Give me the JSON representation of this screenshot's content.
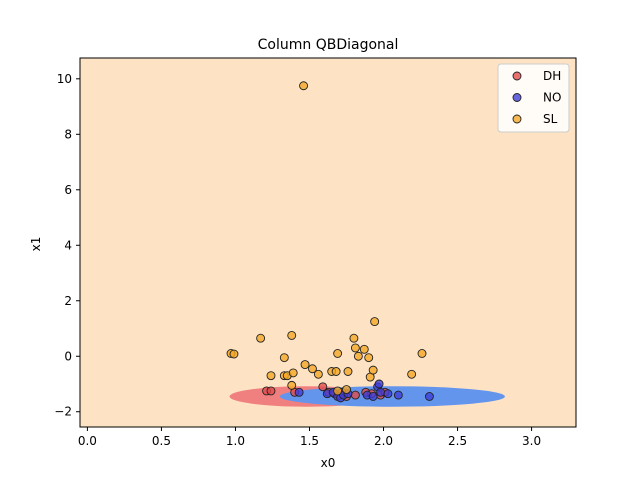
{
  "chart_data": {
    "type": "scatter",
    "title": "Column QBDiagonal",
    "xlabel": "x0",
    "ylabel": "x1",
    "xlim": [
      -0.05,
      3.3
    ],
    "ylim": [
      -2.55,
      10.75
    ],
    "xticks": [
      0.0,
      0.5,
      1.0,
      1.5,
      2.0,
      2.5,
      3.0
    ],
    "xtick_labels": [
      "0.0",
      "0.5",
      "1.0",
      "1.5",
      "2.0",
      "2.5",
      "3.0"
    ],
    "yticks": [
      -2,
      0,
      2,
      4,
      6,
      8,
      10
    ],
    "ytick_labels": [
      "−2",
      "0",
      "2",
      "4",
      "6",
      "8",
      "10"
    ],
    "grid": false,
    "legend_position": "top-right",
    "background_region_color": "#fde3c4",
    "decision_regions": [
      {
        "class": "DH",
        "color": "#f08080",
        "cx": 1.48,
        "cy": -1.45,
        "rx": 0.52,
        "ry": 0.37
      },
      {
        "class": "NO",
        "color": "#6495ed",
        "cx": 2.06,
        "cy": -1.45,
        "rx": 0.76,
        "ry": 0.37
      }
    ],
    "series": [
      {
        "name": "DH",
        "color": "#e24a4a",
        "points": [
          [
            1.21,
            -1.25
          ],
          [
            1.24,
            -1.25
          ],
          [
            1.4,
            -1.3
          ],
          [
            1.59,
            -1.1
          ],
          [
            1.63,
            -1.3
          ],
          [
            1.67,
            -1.35
          ],
          [
            1.7,
            -1.4
          ],
          [
            1.72,
            -1.3
          ],
          [
            1.75,
            -1.45
          ],
          [
            1.81,
            -1.4
          ],
          [
            1.88,
            -1.3
          ],
          [
            1.92,
            -1.35
          ],
          [
            1.98,
            -1.4
          ],
          [
            2.01,
            -1.3
          ]
        ]
      },
      {
        "name": "NO",
        "color": "#3c3cd8",
        "points": [
          [
            1.43,
            -1.3
          ],
          [
            1.62,
            -1.35
          ],
          [
            1.66,
            -1.3
          ],
          [
            1.69,
            -1.45
          ],
          [
            1.71,
            -1.5
          ],
          [
            1.73,
            -1.4
          ],
          [
            1.76,
            -1.35
          ],
          [
            1.89,
            -1.4
          ],
          [
            1.93,
            -1.45
          ],
          [
            1.96,
            -1.1
          ],
          [
            1.97,
            -1.0
          ],
          [
            1.98,
            -1.3
          ],
          [
            2.03,
            -1.35
          ],
          [
            2.1,
            -1.4
          ],
          [
            2.31,
            -1.45
          ]
        ]
      },
      {
        "name": "SL",
        "color": "#f5a623",
        "points": [
          [
            1.46,
            9.75
          ],
          [
            0.97,
            0.1
          ],
          [
            0.99,
            0.08
          ],
          [
            1.17,
            0.65
          ],
          [
            1.24,
            -0.7
          ],
          [
            1.33,
            -0.05
          ],
          [
            1.33,
            -0.7
          ],
          [
            1.35,
            -0.7
          ],
          [
            1.38,
            0.75
          ],
          [
            1.38,
            -1.05
          ],
          [
            1.39,
            -0.6
          ],
          [
            1.47,
            -0.3
          ],
          [
            1.52,
            -0.45
          ],
          [
            1.56,
            -0.65
          ],
          [
            1.65,
            -0.55
          ],
          [
            1.68,
            -0.55
          ],
          [
            1.69,
            0.1
          ],
          [
            1.69,
            -1.25
          ],
          [
            1.75,
            -1.2
          ],
          [
            1.76,
            -0.55
          ],
          [
            1.8,
            0.65
          ],
          [
            1.81,
            0.3
          ],
          [
            1.83,
            0.0
          ],
          [
            1.87,
            0.25
          ],
          [
            1.9,
            -0.05
          ],
          [
            1.91,
            -0.75
          ],
          [
            1.93,
            -0.5
          ],
          [
            1.94,
            1.25
          ],
          [
            2.19,
            -0.65
          ],
          [
            2.26,
            0.1
          ]
        ]
      }
    ]
  }
}
